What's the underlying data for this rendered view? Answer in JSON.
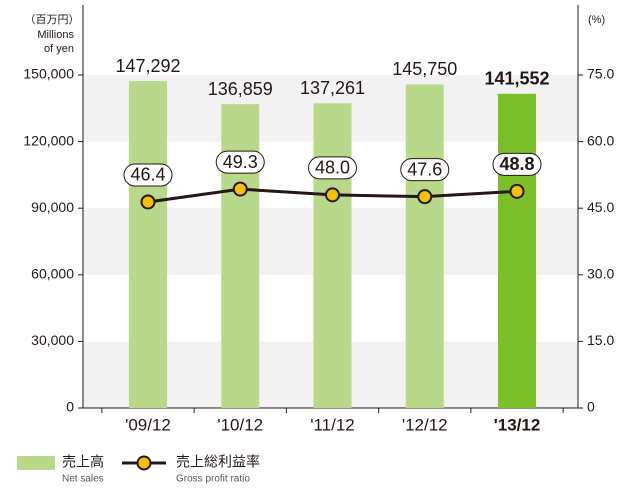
{
  "chart_data": {
    "type": "bar",
    "y_unit": [
      "（百万円）",
      "Millions",
      "of yen"
    ],
    "y2_unit": "(%)",
    "categories": [
      "'09/12",
      "'10/12",
      "'11/12",
      "'12/12",
      "'13/12"
    ],
    "highlight_index": 4,
    "series": [
      {
        "name": "売上高",
        "subname": "Net sales",
        "color": "#b9d98a",
        "highlight_color": "#7bbf2a",
        "values": [
          147292,
          136859,
          137261,
          145750,
          141552
        ],
        "value_labels": [
          "147,292",
          "136,859",
          "137,261",
          "145,750",
          "141,552"
        ]
      },
      {
        "name": "売上総利益率",
        "subname": "Gross profit ratio",
        "type": "line",
        "axis": "y2",
        "color": "#231815",
        "marker_color": "#f5c000",
        "values": [
          46.4,
          49.3,
          48.0,
          47.6,
          48.8
        ],
        "value_labels": [
          "46.4",
          "49.3",
          "48.0",
          "47.6",
          "48.8"
        ]
      }
    ],
    "ylim": [
      0,
      150000
    ],
    "yticks": [
      0,
      {
        "value": 30000,
        "label": "30,000"
      },
      {
        "value": 60000,
        "label": "60,000"
      },
      {
        "value": 90000,
        "label": "90,000"
      },
      {
        "value": 120000,
        "label": "120,000"
      },
      {
        "value": 150000,
        "label": "150,000"
      }
    ],
    "y2lim": [
      0,
      75
    ],
    "y2ticks": [
      0,
      {
        "value": 15,
        "label": "15.0"
      },
      {
        "value": 30,
        "label": "30.0"
      },
      {
        "value": 45,
        "label": "45.0"
      },
      {
        "value": 60,
        "label": "60.0"
      },
      {
        "value": 75,
        "label": "75.0"
      }
    ],
    "band_color": "#f2f2f2"
  }
}
